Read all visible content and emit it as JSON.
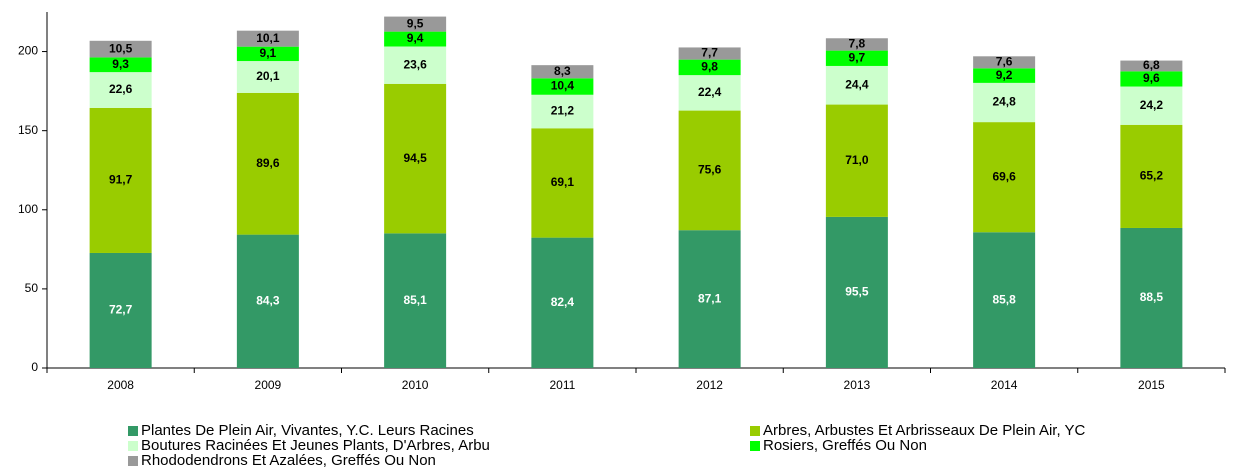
{
  "chart_data": {
    "type": "stacked_bar",
    "categories": [
      "2008",
      "2009",
      "2010",
      "2011",
      "2012",
      "2013",
      "2014",
      "2015"
    ],
    "ylim": [
      0,
      225
    ],
    "yticks": [
      0,
      50,
      100,
      150,
      200
    ],
    "series": [
      {
        "name": "Plantes De Plein Air, Vivantes, Y.C. Leurs Racines",
        "color": "#339966",
        "label_color": "#ffffff",
        "values": [
          72.7,
          84.3,
          85.1,
          82.4,
          87.1,
          95.5,
          85.8,
          88.5
        ],
        "value_labels": [
          "72,7",
          "84,3",
          "85,1",
          "82,4",
          "87,1",
          "95,5",
          "85,8",
          "88,5"
        ]
      },
      {
        "name": "Arbres, Arbustes Et Arbrisseaux De Plein Air, YC",
        "color": "#99cc00",
        "label_color": "#000000",
        "values": [
          91.7,
          89.6,
          94.5,
          69.1,
          75.6,
          71.0,
          69.6,
          65.2
        ],
        "value_labels": [
          "91,7",
          "89,6",
          "94,5",
          "69,1",
          "75,6",
          "71,0",
          "69,6",
          "65,2"
        ]
      },
      {
        "name": "Boutures Racinées Et Jeunes Plants, D'Arbres, Arbu",
        "color": "#ccffcc",
        "label_color": "#000000",
        "values": [
          22.6,
          20.1,
          23.6,
          21.2,
          22.4,
          24.4,
          24.8,
          24.2
        ],
        "value_labels": [
          "22,6",
          "20,1",
          "23,6",
          "21,2",
          "22,4",
          "24,4",
          "24,8",
          "24,2"
        ]
      },
      {
        "name": "Rosiers, Greffés Ou Non",
        "color": "#00ff00",
        "label_color": "#000000",
        "values": [
          9.3,
          9.1,
          9.4,
          10.4,
          9.8,
          9.7,
          9.2,
          9.6
        ],
        "value_labels": [
          "9,3",
          "9,1",
          "9,4",
          "10,4",
          "9,8",
          "9,7",
          "9,2",
          "9,6"
        ]
      },
      {
        "name": "Rhododendrons Et Azalées, Greffés Ou Non",
        "color": "#999999",
        "label_color": "#000000",
        "values": [
          10.5,
          10.1,
          9.5,
          8.3,
          7.7,
          7.8,
          7.6,
          6.8
        ],
        "value_labels": [
          "10,5",
          "10,1",
          "9,5",
          "8,3",
          "7,7",
          "7,8",
          "7,6",
          "6,8"
        ]
      }
    ]
  }
}
